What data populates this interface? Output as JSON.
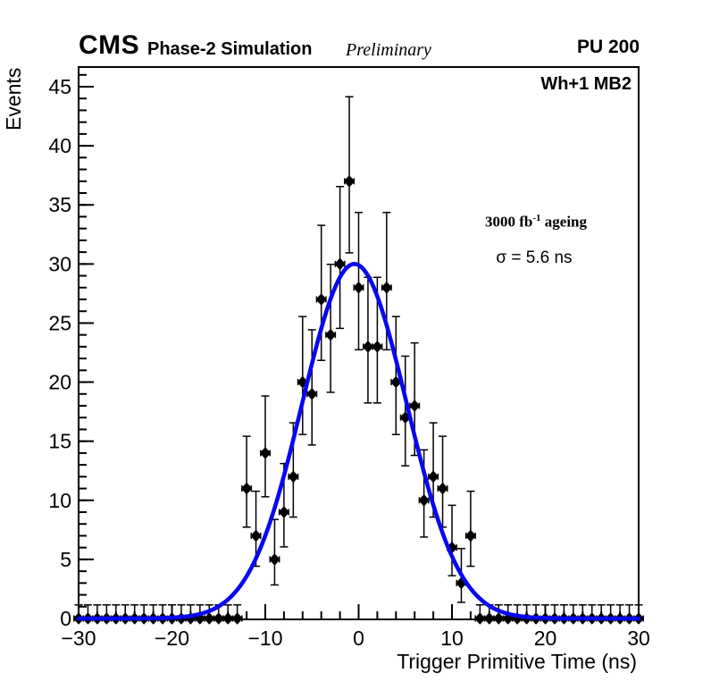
{
  "header": {
    "experiment": "CMS",
    "subtitle": "Phase-2 Simulation",
    "preliminary": "Preliminary",
    "pileup": "PU 200"
  },
  "plot_labels": {
    "region": "Wh+1 MB2",
    "lumi_prefix": "3000 fb",
    "lumi_sup": "-1",
    "lumi_suffix": " ageing",
    "sigma": "σ = 5.6 ns"
  },
  "chart_data": {
    "type": "scatter",
    "title": "CMS Phase-2 Simulation Preliminary, PU 200, Wh+1 MB2, 3000 fb-1 ageing",
    "xlabel": "Trigger Primitive Time (ns)",
    "ylabel": "Events",
    "xlim": [
      -30,
      30
    ],
    "ylim": [
      0,
      46.7
    ],
    "grid": false,
    "legend": "none",
    "x_major_ticks": [
      -30,
      -20,
      -10,
      0,
      10,
      20,
      30
    ],
    "x_tick_labels": [
      "−30",
      "−20",
      "−10",
      "0",
      "10",
      "20",
      "30"
    ],
    "x_minor_step": 2,
    "y_major_ticks": [
      0,
      5,
      10,
      15,
      20,
      25,
      30,
      35,
      40,
      45
    ],
    "y_minor_step": 1,
    "marker": {
      "shape": "diamond",
      "color": "#000000",
      "x_half_width_ns": 0.5
    },
    "points": {
      "x": [
        -30,
        -29,
        -28,
        -27,
        -26,
        -25,
        -24,
        -23,
        -22,
        -21,
        -20,
        -19,
        -18,
        -17,
        -16,
        -15,
        -14,
        -13,
        -12,
        -11,
        -10,
        -9,
        -8,
        -7,
        -6,
        -5,
        -4,
        -3,
        -2,
        -1,
        0,
        1,
        2,
        3,
        4,
        5,
        6,
        7,
        8,
        9,
        10,
        11,
        12,
        13,
        14,
        15,
        16,
        17,
        18,
        19,
        20,
        21,
        22,
        23,
        24,
        25,
        26,
        27,
        28,
        29,
        30
      ],
      "y": [
        0,
        0,
        0,
        0,
        0,
        0,
        0,
        0,
        0,
        0,
        0,
        0,
        0,
        0,
        0,
        0,
        0,
        0,
        11,
        7,
        14,
        5,
        9,
        12,
        20,
        19,
        27,
        24,
        30,
        37,
        28,
        23,
        23,
        28,
        20,
        17,
        18,
        10,
        12,
        11,
        6,
        3,
        7,
        0,
        0,
        0,
        0,
        0,
        0,
        0,
        0,
        0,
        0,
        0,
        0,
        0,
        0,
        0,
        0,
        0,
        0
      ],
      "err_lo": [
        0,
        0,
        0,
        0,
        0,
        0,
        0,
        0,
        0,
        0,
        0,
        0,
        0,
        0,
        0,
        0,
        0,
        0,
        3.27,
        2.58,
        3.7,
        2.16,
        2.94,
        3.42,
        4.43,
        4.32,
        5.16,
        4.86,
        5.45,
        6.06,
        5.26,
        4.76,
        4.76,
        5.26,
        4.43,
        4.08,
        4.2,
        3.11,
        3.42,
        3.27,
        2.38,
        1.63,
        2.58,
        0,
        0,
        0,
        0,
        0,
        0,
        0,
        0,
        0,
        0,
        0,
        0,
        0,
        0,
        0,
        0,
        0,
        0
      ],
      "err_hi": [
        1.15,
        1.15,
        1.15,
        1.15,
        1.15,
        1.15,
        1.15,
        1.15,
        1.15,
        1.15,
        1.15,
        1.15,
        1.15,
        1.15,
        1.15,
        1.15,
        1.15,
        1.15,
        4.42,
        3.77,
        4.83,
        3.38,
        4.11,
        4.56,
        5.55,
        5.43,
        6.27,
        5.97,
        6.55,
        7.15,
        6.36,
        5.87,
        5.87,
        6.36,
        5.55,
        5.2,
        5.32,
        4.27,
        4.56,
        4.42,
        3.58,
        2.92,
        3.77,
        1.15,
        1.15,
        1.15,
        1.15,
        1.15,
        1.15,
        1.15,
        1.15,
        1.15,
        1.15,
        1.15,
        1.15,
        1.15,
        1.15,
        1.15,
        1.15,
        1.15,
        1.15
      ]
    },
    "fit": {
      "type": "gaussian",
      "amplitude": 30,
      "mean": -0.45,
      "sigma_ns": 5.6,
      "color": "#0808f0",
      "line_width": 4.6
    },
    "colors": {
      "axis": "#000000",
      "marker": "#000000",
      "background": "#ffffff"
    }
  }
}
